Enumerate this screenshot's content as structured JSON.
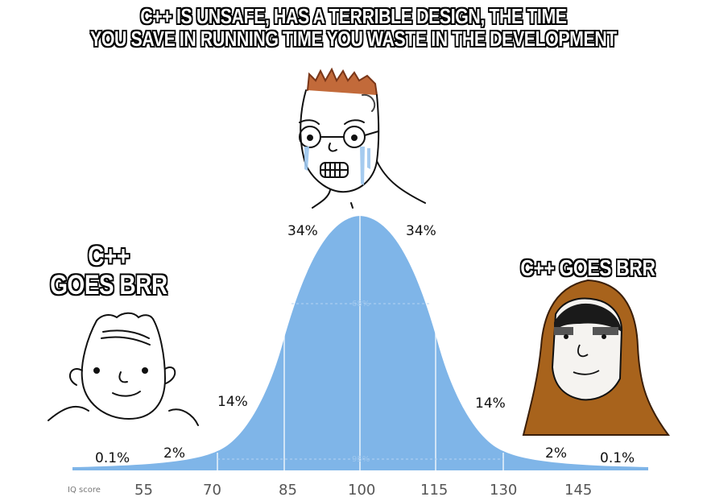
{
  "captions": {
    "top_line1": "C++ IS UNSAFE, HAS A TERRIBLE DESIGN, THE TIME",
    "top_line2": "YOU SAVE IN RUNNING TIME YOU WASTE IN THE DEVELOPMENT",
    "left_line1": "C++",
    "left_line2": "GOES BRR",
    "right": "C++ GOES BRR"
  },
  "chart": {
    "axis_label": "IQ score",
    "ticks": [
      "55",
      "70",
      "85",
      "100",
      "115",
      "130",
      "145"
    ],
    "percentages": [
      "0.1%",
      "2%",
      "14%",
      "34%",
      "34%",
      "14%",
      "2%",
      "0.1%"
    ],
    "inner_68": "68%",
    "inner_95": "95%"
  },
  "colors": {
    "curve_fill": "#7fb5e8",
    "curve_dark": "#5a9ad8",
    "hood": "#a8631c"
  }
}
